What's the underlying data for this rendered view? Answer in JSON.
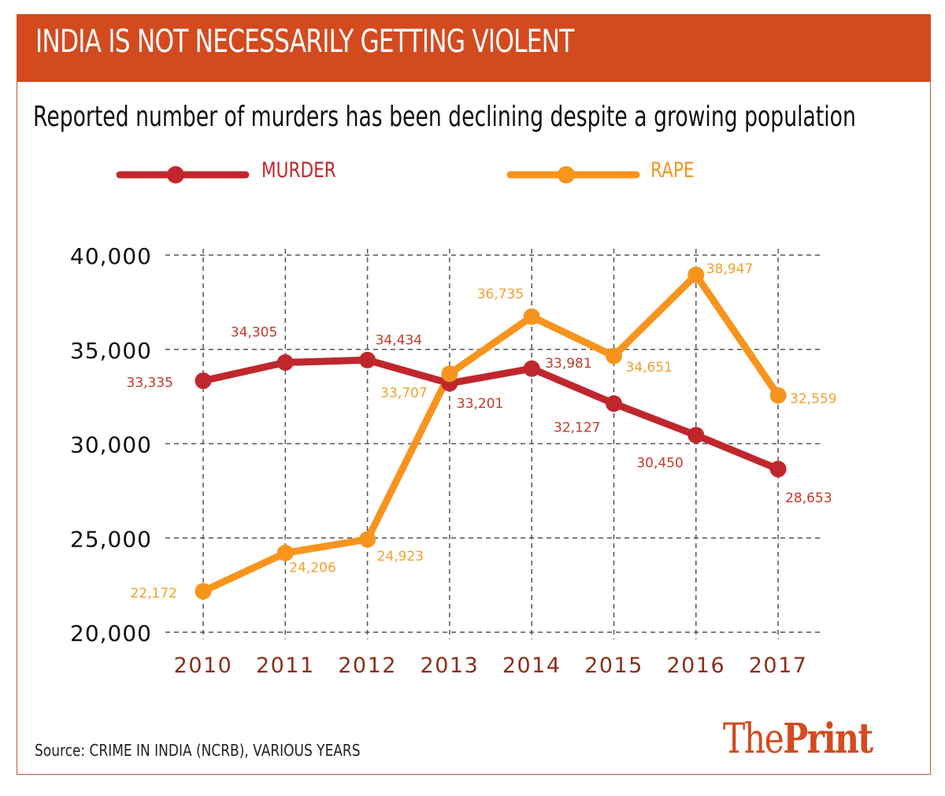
{
  "header": {
    "title": "INDIA IS NOT NECESSARILY GETTING VIOLENT",
    "subtitle": "Reported number of murders has been declining despite a growing population"
  },
  "footer": {
    "source": "Source: CRIME IN INDIA (NCRB), VARIOUS YEARS",
    "logo_the": "The",
    "logo_print": "Print"
  },
  "colors": {
    "banner": "#d34a1f",
    "murder": "#c0272d",
    "murder_label": "#c0392b",
    "rape": "#f7941d",
    "rape_label": "#f0a030",
    "xtick": "#8b2e1a",
    "grid": "#555555"
  },
  "chart_data": {
    "type": "line",
    "title": "INDIA IS NOT NECESSARILY GETTING VIOLENT",
    "subtitle": "Reported number of murders has been declining despite a growing population",
    "xlabel": "",
    "ylabel": "",
    "x": [
      "2010",
      "2011",
      "2012",
      "2013",
      "2014",
      "2015",
      "2016",
      "2017"
    ],
    "ylim": [
      20000,
      40000
    ],
    "yticks": [
      20000,
      25000,
      30000,
      35000,
      40000
    ],
    "ytick_labels": [
      "20,000",
      "25,000",
      "30,000",
      "35,000",
      "40,000"
    ],
    "grid": true,
    "legend_position": "top",
    "series": [
      {
        "name": "MURDER",
        "color": "#c0272d",
        "values": [
          33335,
          34305,
          34434,
          33201,
          33981,
          32127,
          30450,
          28653
        ],
        "labels": [
          "33,335",
          "34,305",
          "34,434",
          "33,201",
          "33,981",
          "32,127",
          "30,450",
          "28,653"
        ]
      },
      {
        "name": "RAPE",
        "color": "#f7941d",
        "values": [
          22172,
          24206,
          24923,
          33707,
          36735,
          34651,
          38947,
          32559
        ],
        "labels": [
          "22,172",
          "24,206",
          "24,923",
          "33,707",
          "36,735",
          "34,651",
          "38,947",
          "32,559"
        ]
      }
    ]
  }
}
